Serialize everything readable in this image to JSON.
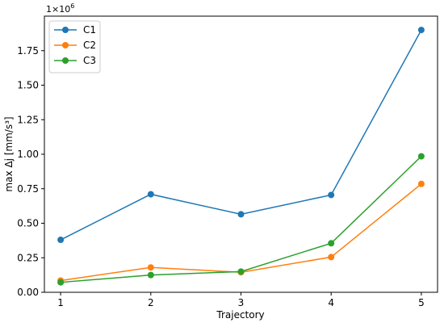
{
  "chart_data": {
    "type": "line",
    "x": [
      1,
      2,
      3,
      4,
      5
    ],
    "series": [
      {
        "name": "C1",
        "color": "#1f77b4",
        "values": [
          380000,
          710000,
          565000,
          705000,
          1900000
        ]
      },
      {
        "name": "C2",
        "color": "#ff7f0e",
        "values": [
          85000,
          180000,
          145000,
          255000,
          785000
        ]
      },
      {
        "name": "C3",
        "color": "#2ca02c",
        "values": [
          72000,
          125000,
          150000,
          355000,
          985000
        ]
      }
    ],
    "title": "",
    "xlabel": "Trajectory",
    "ylabel": "max Δj [mm/s³]",
    "y_offset_text": "1e6",
    "xlim": [
      0.82,
      5.18
    ],
    "ylim": [
      0,
      2000000
    ],
    "xticks": [
      1,
      2,
      3,
      4,
      5
    ],
    "xtick_labels": [
      "1",
      "2",
      "3",
      "4",
      "5"
    ],
    "yticks": [
      0,
      250000,
      500000,
      750000,
      1000000,
      1250000,
      1500000,
      1750000
    ],
    "ytick_labels": [
      "0.00",
      "0.25",
      "0.50",
      "0.75",
      "1.00",
      "1.25",
      "1.50",
      "1.75"
    ],
    "grid": false,
    "legend_position": "top-left"
  }
}
